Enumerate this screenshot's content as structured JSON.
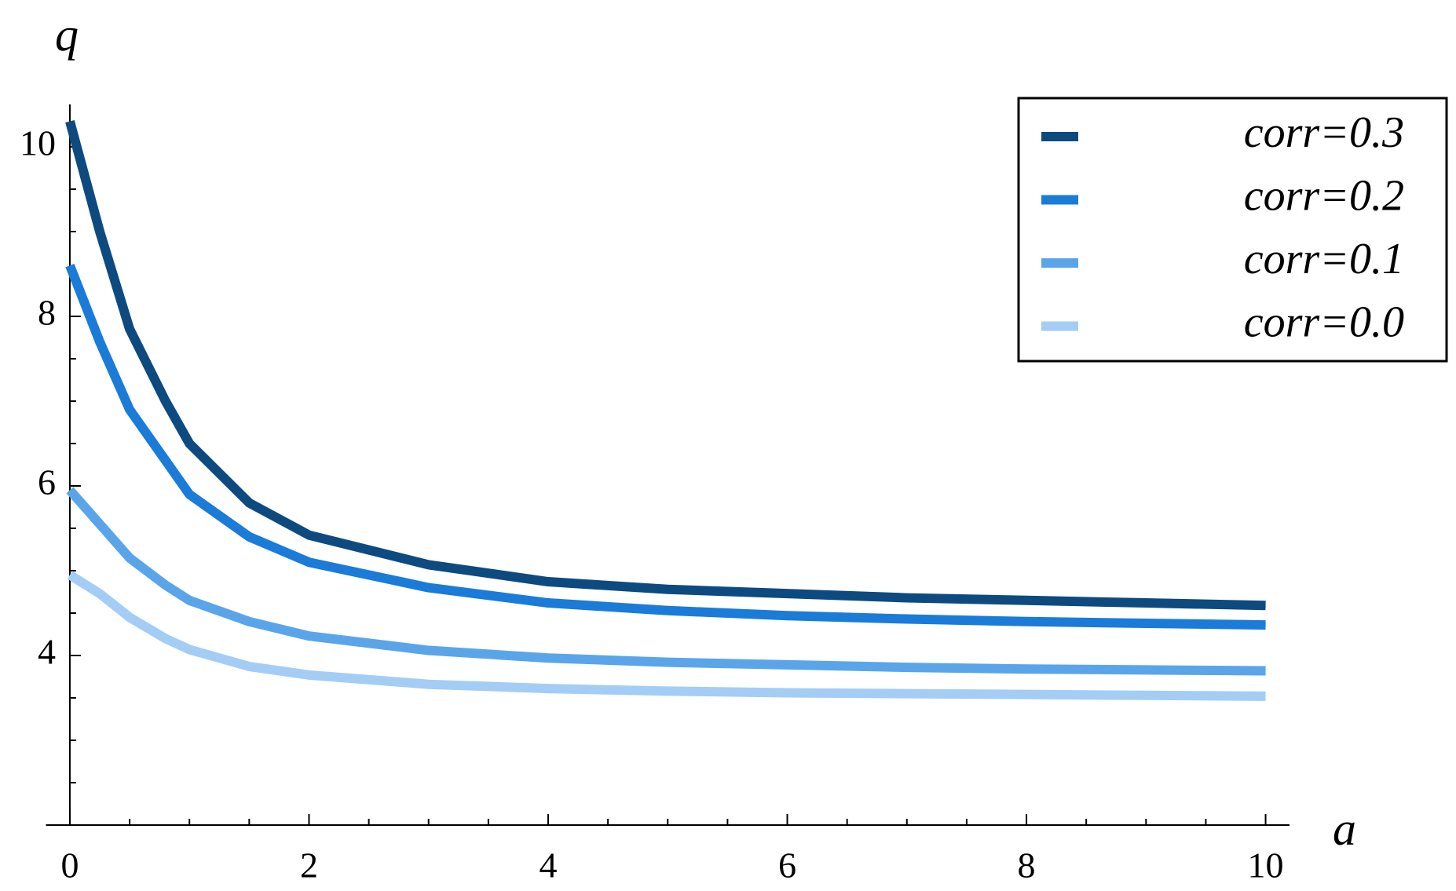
{
  "chart_data": {
    "type": "line",
    "xlabel": "a",
    "ylabel": "q",
    "x": [
      0,
      0.25,
      0.5,
      0.8,
      1,
      1.5,
      2,
      3,
      4,
      5,
      6,
      7,
      8,
      9,
      10
    ],
    "series": [
      {
        "name": "corr=0.3",
        "color": "#0d4a80",
        "values": [
          10.3,
          9.0,
          7.85,
          7.0,
          6.5,
          5.8,
          5.42,
          5.07,
          4.87,
          4.78,
          4.73,
          4.68,
          4.65,
          4.62,
          4.59
        ]
      },
      {
        "name": "corr=0.2",
        "color": "#1a7bd9",
        "values": [
          8.6,
          7.7,
          6.9,
          6.3,
          5.9,
          5.4,
          5.1,
          4.8,
          4.62,
          4.53,
          4.47,
          4.43,
          4.4,
          4.38,
          4.36
        ]
      },
      {
        "name": "corr=0.1",
        "color": "#5aa5ea",
        "values": [
          5.95,
          5.55,
          5.15,
          4.83,
          4.65,
          4.4,
          4.23,
          4.06,
          3.97,
          3.92,
          3.89,
          3.86,
          3.84,
          3.83,
          3.82
        ]
      },
      {
        "name": "corr=0.0",
        "color": "#a3cdf5",
        "values": [
          4.95,
          4.73,
          4.45,
          4.2,
          4.07,
          3.87,
          3.77,
          3.66,
          3.61,
          3.58,
          3.56,
          3.55,
          3.54,
          3.53,
          3.52
        ]
      }
    ],
    "xlim": [
      -0.2,
      10.2
    ],
    "ylim": [
      2,
      10.5
    ],
    "xticks": [
      0,
      2,
      4,
      6,
      8,
      10
    ],
    "yticks": [
      4,
      6,
      8,
      10
    ],
    "xminorticks": [
      0.5,
      1,
      1.5,
      2.5,
      3,
      3.5,
      4.5,
      5,
      5.5,
      6.5,
      7,
      7.5,
      8.5,
      9,
      9.5
    ],
    "yminorticks": [
      2.5,
      3,
      3.5,
      4.5,
      5,
      5.5,
      6.5,
      7,
      7.5,
      8.5,
      9,
      9.5
    ],
    "legend": "top-right"
  }
}
